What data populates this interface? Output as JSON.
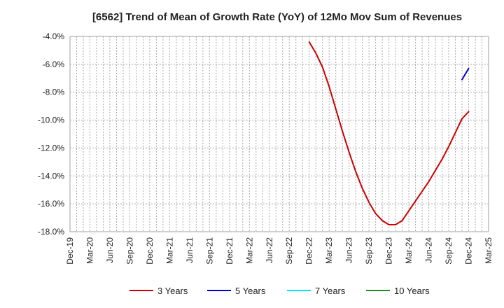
{
  "chart_data": {
    "type": "line",
    "title": "[6562]  Trend of Mean of Growth Rate (YoY) of 12Mo Mov Sum of Revenues",
    "xlabel": "",
    "ylabel": "",
    "ylim": [
      -18.0,
      -4.0
    ],
    "yticks": [
      -4.0,
      -6.0,
      -8.0,
      -10.0,
      -12.0,
      -14.0,
      -16.0,
      -18.0
    ],
    "ytick_labels": [
      "-4.0%",
      "-6.0%",
      "-8.0%",
      "-10.0%",
      "-12.0%",
      "-14.0%",
      "-16.0%",
      "-18.0%"
    ],
    "xtick_labels": [
      "Dec-19",
      "Mar-20",
      "Jun-20",
      "Sep-20",
      "Dec-20",
      "Mar-21",
      "Jun-21",
      "Sep-21",
      "Dec-21",
      "Mar-22",
      "Jun-22",
      "Sep-22",
      "Dec-22",
      "Mar-23",
      "Jun-23",
      "Sep-23",
      "Dec-23",
      "Mar-24",
      "Jun-24",
      "Sep-24",
      "Dec-24",
      "Mar-25"
    ],
    "x_months_total": 63,
    "grid": true,
    "legend_position": "bottom",
    "series": [
      {
        "name": "3 Years",
        "color": "#cc0000",
        "points": [
          {
            "m": 36,
            "v": -4.4
          },
          {
            "m": 37,
            "v": -5.2
          },
          {
            "m": 38,
            "v": -6.2
          },
          {
            "m": 39,
            "v": -7.6
          },
          {
            "m": 40,
            "v": -9.2
          },
          {
            "m": 41,
            "v": -10.8
          },
          {
            "m": 42,
            "v": -12.3
          },
          {
            "m": 43,
            "v": -13.7
          },
          {
            "m": 44,
            "v": -14.9
          },
          {
            "m": 45,
            "v": -15.9
          },
          {
            "m": 46,
            "v": -16.7
          },
          {
            "m": 47,
            "v": -17.2
          },
          {
            "m": 48,
            "v": -17.5
          },
          {
            "m": 49,
            "v": -17.5
          },
          {
            "m": 50,
            "v": -17.2
          },
          {
            "m": 51,
            "v": -16.5
          },
          {
            "m": 52,
            "v": -15.8
          },
          {
            "m": 53,
            "v": -15.1
          },
          {
            "m": 54,
            "v": -14.4
          },
          {
            "m": 55,
            "v": -13.6
          },
          {
            "m": 56,
            "v": -12.8
          },
          {
            "m": 57,
            "v": -11.9
          },
          {
            "m": 58,
            "v": -10.9
          },
          {
            "m": 59,
            "v": -9.9
          },
          {
            "m": 60,
            "v": -9.4
          }
        ]
      },
      {
        "name": "5 Years",
        "color": "#0000cc",
        "points": [
          {
            "m": 59,
            "v": -7.1
          },
          {
            "m": 60,
            "v": -6.3
          }
        ]
      },
      {
        "name": "7 Years",
        "color": "#00e5ee",
        "points": []
      },
      {
        "name": "10 Years",
        "color": "#228b22",
        "points": []
      }
    ]
  }
}
